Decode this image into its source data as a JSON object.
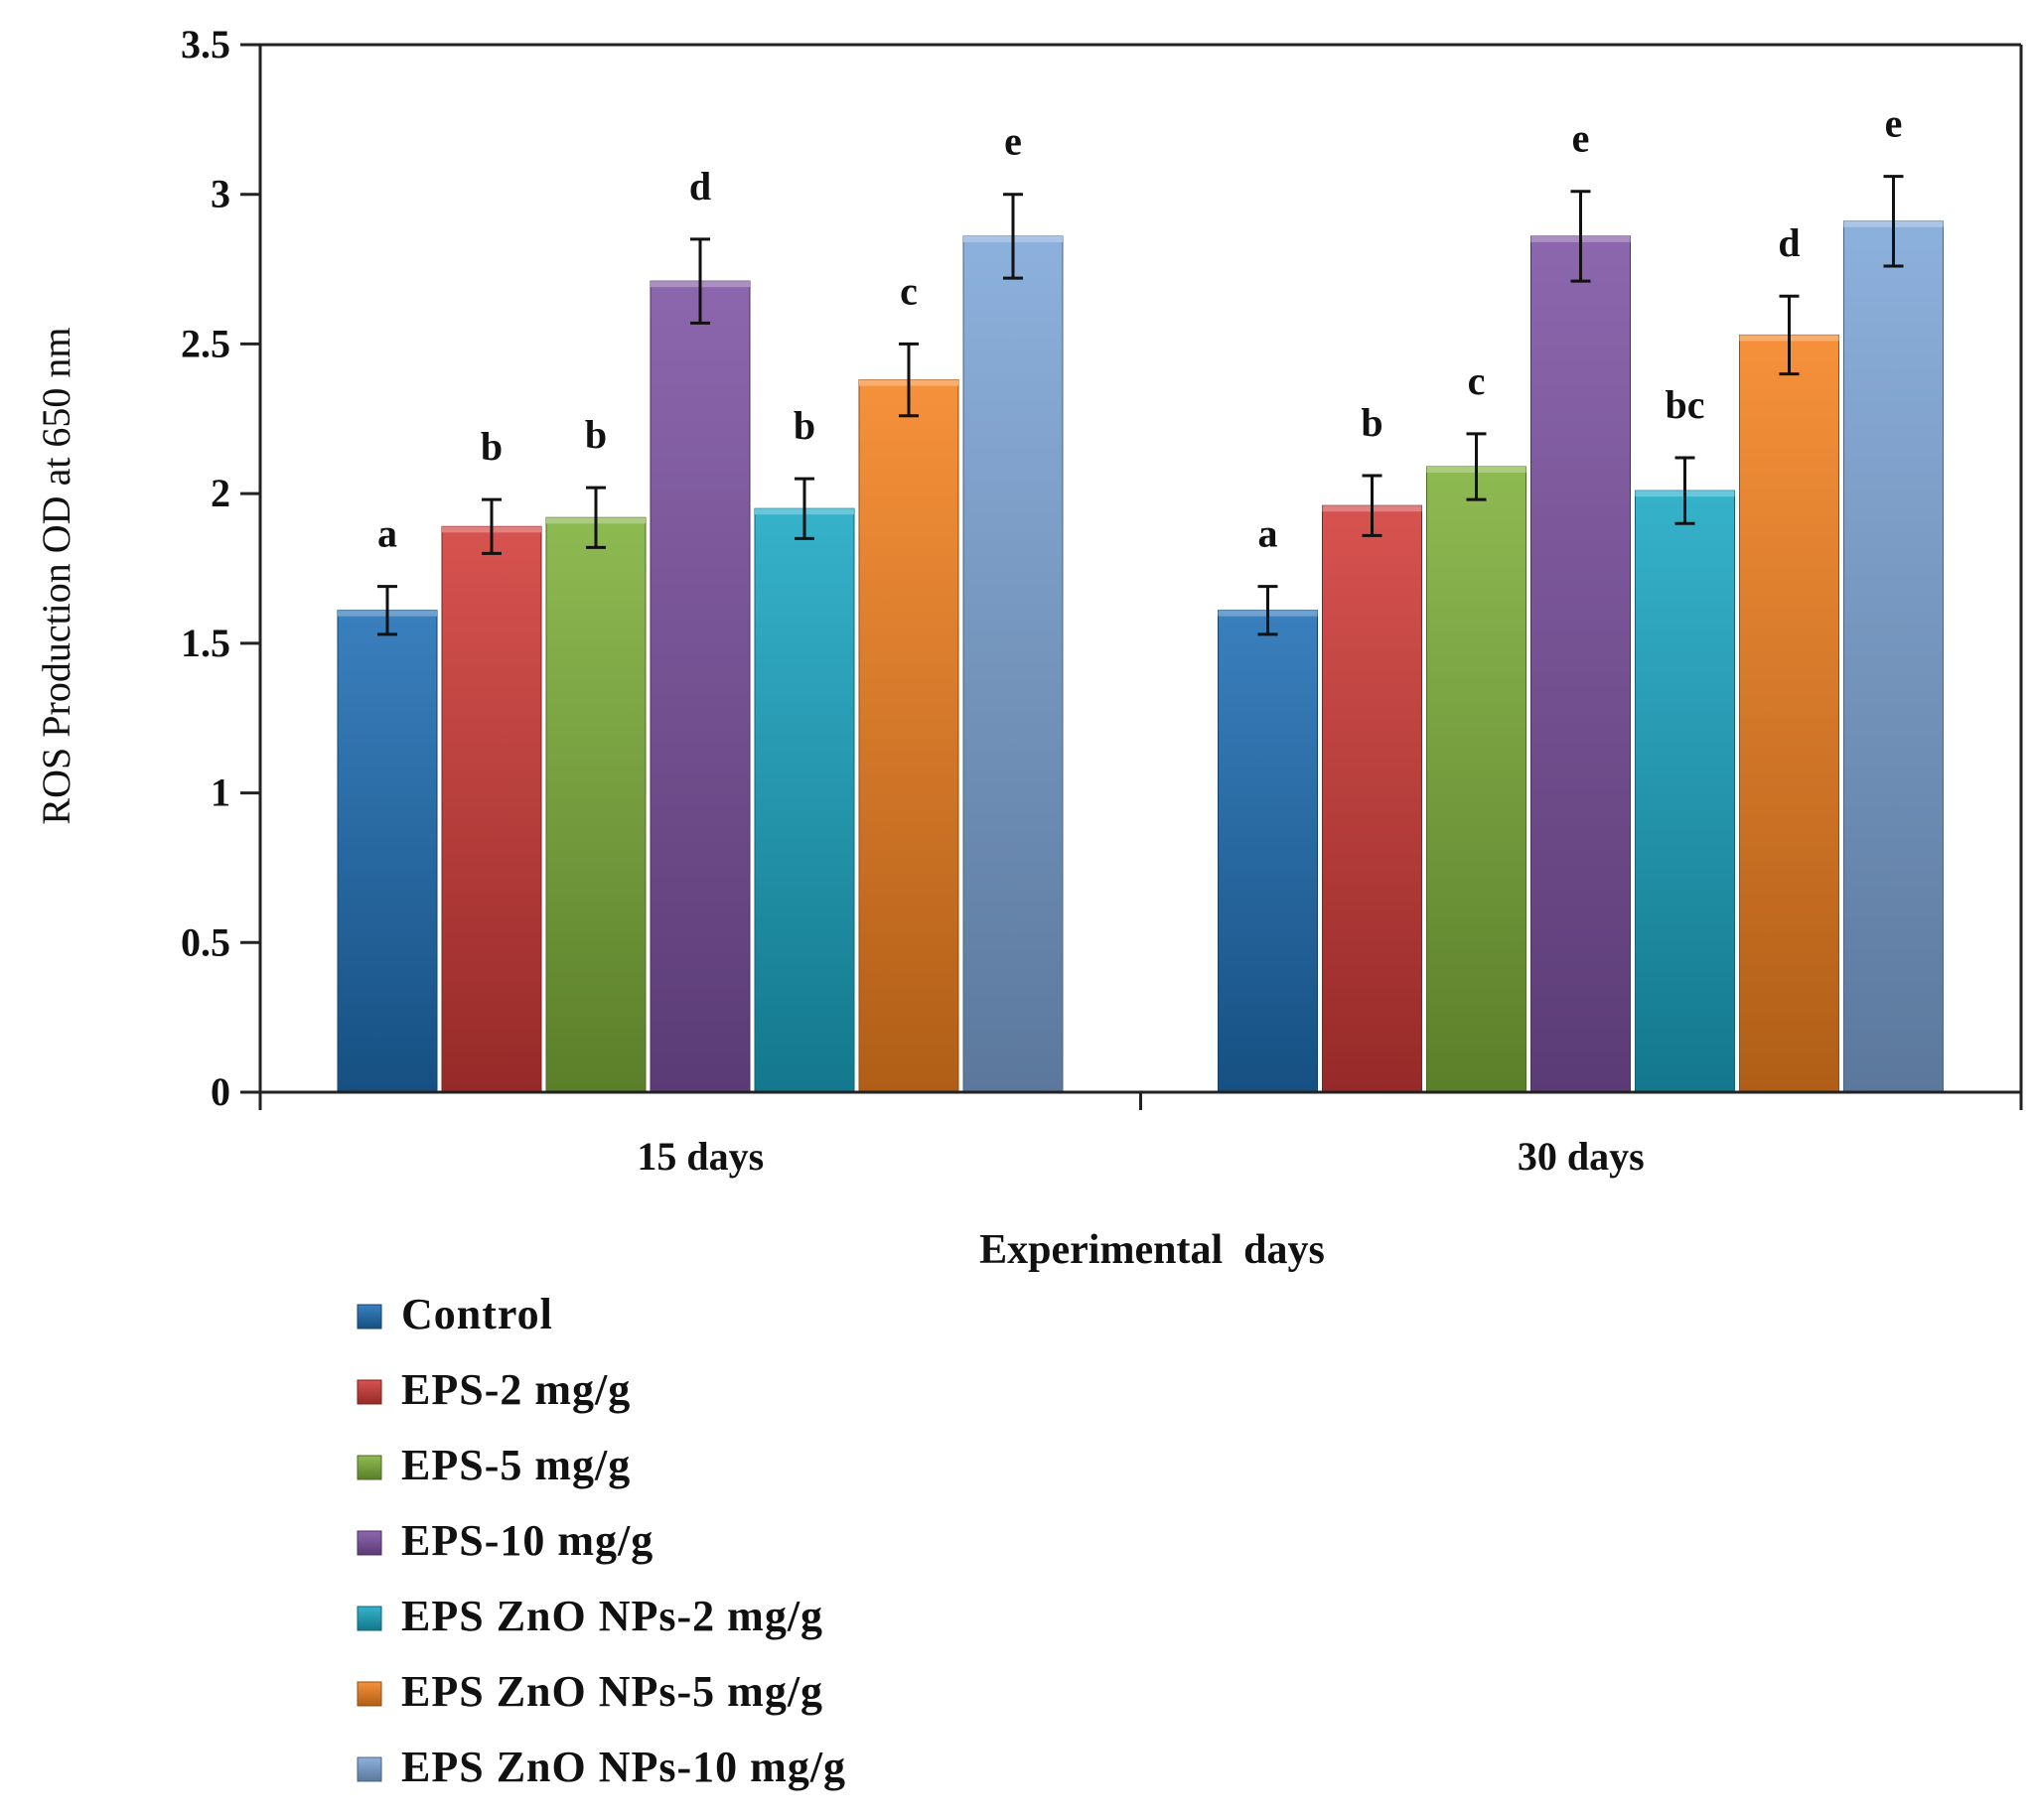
{
  "chart_data": {
    "type": "bar",
    "categories": [
      "15 days",
      "30 days"
    ],
    "series": [
      {
        "name": "Control",
        "color": "#1f6fb5",
        "values": [
          1.61,
          1.61
        ],
        "errors": [
          0.08,
          0.08
        ],
        "labels": [
          "a",
          "a"
        ]
      },
      {
        "name": "EPS-2 mg/g",
        "color": "#d13b38",
        "values": [
          1.89,
          1.96
        ],
        "errors": [
          0.09,
          0.1
        ],
        "labels": [
          "b",
          "b"
        ]
      },
      {
        "name": "EPS-5 mg/g",
        "color": "#7fb13a",
        "values": [
          1.92,
          2.09
        ],
        "errors": [
          0.1,
          0.11
        ],
        "labels": [
          "b",
          "c"
        ]
      },
      {
        "name": "EPS-10 mg/g",
        "color": "#7e52a3",
        "values": [
          2.71,
          2.86
        ],
        "errors": [
          0.14,
          0.15
        ],
        "labels": [
          "d",
          "e"
        ]
      },
      {
        "name": "EPS ZnO NPs-2 mg/g",
        "color": "#1ba7c4",
        "values": [
          1.95,
          2.01
        ],
        "errors": [
          0.1,
          0.11
        ],
        "labels": [
          "b",
          "bc"
        ]
      },
      {
        "name": "EPS ZnO NPs-5 mg/g",
        "color": "#f58220",
        "values": [
          2.38,
          2.53
        ],
        "errors": [
          0.12,
          0.13
        ],
        "labels": [
          "c",
          "d"
        ]
      },
      {
        "name": "EPS ZnO NPs-10 mg/g",
        "color": "#7ea6d8",
        "values": [
          2.86,
          2.91
        ],
        "errors": [
          0.14,
          0.15
        ],
        "labels": [
          "e",
          "e"
        ]
      }
    ],
    "yticks": [
      "0",
      "0.5",
      "1",
      "1.5",
      "2",
      "2.5",
      "3",
      "3.5"
    ],
    "ylim": [
      0,
      3.5
    ],
    "xlabel": "Experimental  days",
    "ylabel": "ROS Production  OD at 650 nm",
    "grid": false,
    "legend": "bottom-left"
  }
}
